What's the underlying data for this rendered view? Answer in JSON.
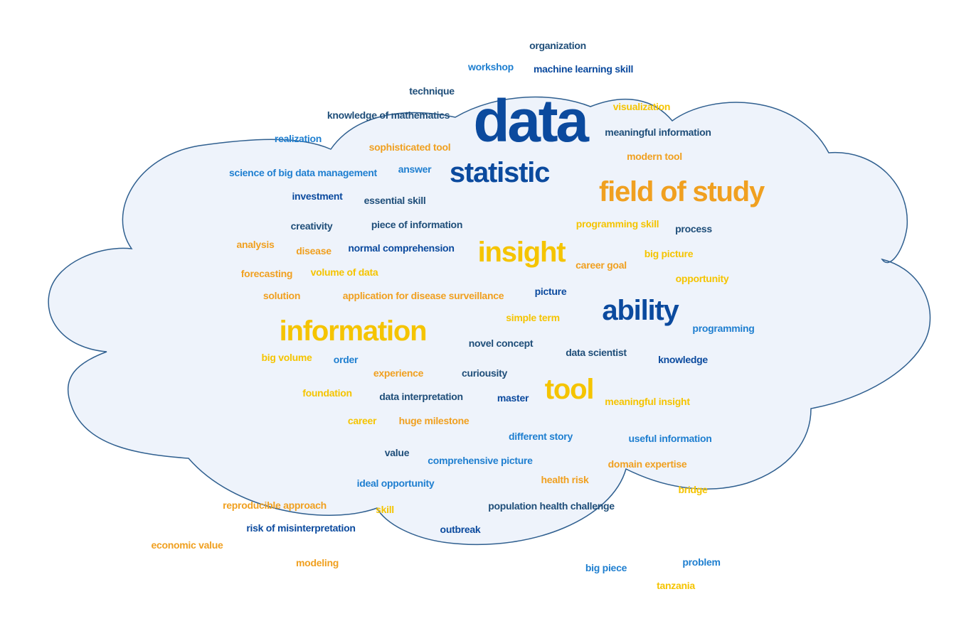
{
  "palette": {
    "dark_blue": "#0b4a9e",
    "navy": "#1f4e79",
    "mid_blue": "#1f7fd0",
    "yellow": "#f5c400",
    "orange": "#f0a020",
    "cloud_fill": "#eef3fb",
    "cloud_stroke": "#2f5f8f"
  },
  "words": [
    {
      "text": "data",
      "size": "xl",
      "color": "dark_blue"
    },
    {
      "text": "statistic",
      "size": "l",
      "color": "dark_blue"
    },
    {
      "text": "field of study",
      "size": "l",
      "color": "orange"
    },
    {
      "text": "insight",
      "size": "l",
      "color": "yellow"
    },
    {
      "text": "ability",
      "size": "l",
      "color": "dark_blue"
    },
    {
      "text": "information",
      "size": "l",
      "color": "yellow"
    },
    {
      "text": "tool",
      "size": "l",
      "color": "yellow"
    },
    {
      "text": "organization",
      "size": "s",
      "color": "navy"
    },
    {
      "text": "workshop",
      "size": "s",
      "color": "mid_blue"
    },
    {
      "text": "machine learning skill",
      "size": "s",
      "color": "dark_blue"
    },
    {
      "text": "technique",
      "size": "s",
      "color": "navy"
    },
    {
      "text": "knowledge of mathematics",
      "size": "s",
      "color": "navy"
    },
    {
      "text": "visualization",
      "size": "s",
      "color": "yellow"
    },
    {
      "text": "realization",
      "size": "s",
      "color": "mid_blue"
    },
    {
      "text": "meaningful information",
      "size": "s",
      "color": "navy"
    },
    {
      "text": "sophisticated tool",
      "size": "s",
      "color": "orange"
    },
    {
      "text": "modern tool",
      "size": "s",
      "color": "orange"
    },
    {
      "text": "science of big data management",
      "size": "s",
      "color": "mid_blue"
    },
    {
      "text": "answer",
      "size": "s",
      "color": "mid_blue"
    },
    {
      "text": "investment",
      "size": "s",
      "color": "dark_blue"
    },
    {
      "text": "essential skill",
      "size": "s",
      "color": "navy"
    },
    {
      "text": "creativity",
      "size": "s",
      "color": "navy"
    },
    {
      "text": "piece of information",
      "size": "s",
      "color": "navy"
    },
    {
      "text": "programming skill",
      "size": "s",
      "color": "yellow"
    },
    {
      "text": "process",
      "size": "s",
      "color": "navy"
    },
    {
      "text": "analysis",
      "size": "s",
      "color": "orange"
    },
    {
      "text": "disease",
      "size": "s",
      "color": "orange"
    },
    {
      "text": "normal comprehension",
      "size": "s",
      "color": "dark_blue"
    },
    {
      "text": "big picture",
      "size": "s",
      "color": "yellow"
    },
    {
      "text": "career goal",
      "size": "s",
      "color": "orange"
    },
    {
      "text": "forecasting",
      "size": "s",
      "color": "orange"
    },
    {
      "text": "volume of data",
      "size": "s",
      "color": "yellow"
    },
    {
      "text": "opportunity",
      "size": "s",
      "color": "yellow"
    },
    {
      "text": "solution",
      "size": "s",
      "color": "orange"
    },
    {
      "text": "application for disease surveillance",
      "size": "s",
      "color": "orange"
    },
    {
      "text": "picture",
      "size": "s",
      "color": "dark_blue"
    },
    {
      "text": "simple term",
      "size": "s",
      "color": "yellow"
    },
    {
      "text": "programming",
      "size": "s",
      "color": "mid_blue"
    },
    {
      "text": "novel concept",
      "size": "s",
      "color": "navy"
    },
    {
      "text": "data scientist",
      "size": "s",
      "color": "navy"
    },
    {
      "text": "big volume",
      "size": "s",
      "color": "yellow"
    },
    {
      "text": "order",
      "size": "s",
      "color": "mid_blue"
    },
    {
      "text": "knowledge",
      "size": "s",
      "color": "dark_blue"
    },
    {
      "text": "experience",
      "size": "s",
      "color": "orange"
    },
    {
      "text": "curiousity",
      "size": "s",
      "color": "navy"
    },
    {
      "text": "foundation",
      "size": "s",
      "color": "yellow"
    },
    {
      "text": "data interpretation",
      "size": "s",
      "color": "navy"
    },
    {
      "text": "master",
      "size": "s",
      "color": "dark_blue"
    },
    {
      "text": "meaningful insight",
      "size": "s",
      "color": "yellow"
    },
    {
      "text": "career",
      "size": "s",
      "color": "yellow"
    },
    {
      "text": "huge milestone",
      "size": "s",
      "color": "orange"
    },
    {
      "text": "different story",
      "size": "s",
      "color": "mid_blue"
    },
    {
      "text": "useful information",
      "size": "s",
      "color": "mid_blue"
    },
    {
      "text": "value",
      "size": "s",
      "color": "navy"
    },
    {
      "text": "comprehensive picture",
      "size": "s",
      "color": "mid_blue"
    },
    {
      "text": "domain expertise",
      "size": "s",
      "color": "orange"
    },
    {
      "text": "health risk",
      "size": "s",
      "color": "orange"
    },
    {
      "text": "ideal opportunity",
      "size": "s",
      "color": "mid_blue"
    },
    {
      "text": "bridge",
      "size": "s",
      "color": "yellow"
    },
    {
      "text": "reproducible approach",
      "size": "s",
      "color": "orange"
    },
    {
      "text": "skill",
      "size": "s",
      "color": "yellow"
    },
    {
      "text": "population health challenge",
      "size": "s",
      "color": "navy"
    },
    {
      "text": "risk of misinterpretation",
      "size": "s",
      "color": "dark_blue"
    },
    {
      "text": "outbreak",
      "size": "s",
      "color": "dark_blue"
    },
    {
      "text": "economic value",
      "size": "s",
      "color": "orange"
    },
    {
      "text": "modeling",
      "size": "s",
      "color": "orange"
    },
    {
      "text": "problem",
      "size": "s",
      "color": "mid_blue"
    },
    {
      "text": "big piece",
      "size": "s",
      "color": "mid_blue"
    },
    {
      "text": "tanzania",
      "size": "s",
      "color": "yellow"
    }
  ]
}
